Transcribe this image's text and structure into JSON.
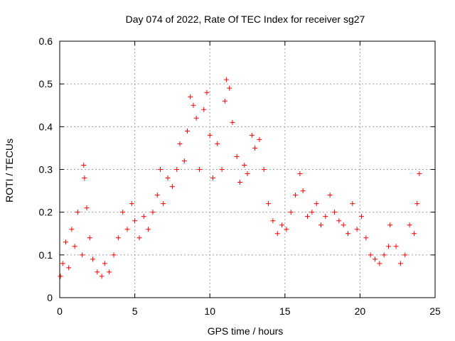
{
  "chart_data": {
    "type": "scatter",
    "title": "Day 074 of 2022, Rate Of TEC Index for receiver sg27",
    "xlabel": "GPS time / hours",
    "ylabel": "ROTI / TECUs",
    "xlim": [
      0,
      25
    ],
    "ylim": [
      0,
      0.6
    ],
    "xticks": [
      "0",
      "5",
      "10",
      "15",
      "20",
      "25"
    ],
    "yticks": [
      "0",
      "0.1",
      "0.2",
      "0.3",
      "0.4",
      "0.5",
      "0.6"
    ],
    "grid": true,
    "marker": "+",
    "color": "#ff0000",
    "series": [
      {
        "x": [
          0.05,
          0.2,
          0.4,
          0.6,
          0.8,
          1.0,
          1.2,
          1.5,
          1.6,
          1.65,
          1.8,
          2.0,
          2.2,
          2.5,
          2.8,
          3.0,
          3.3,
          3.6,
          3.9,
          4.2,
          4.5,
          4.8,
          5.0,
          5.3,
          5.6,
          5.9,
          6.2,
          6.5,
          6.7,
          6.9,
          7.2,
          7.5,
          7.8,
          8.0,
          8.3,
          8.5,
          8.7,
          8.9,
          9.1,
          9.3,
          9.6,
          9.8,
          10.0,
          10.2,
          10.5,
          10.8,
          11.0,
          11.1,
          11.3,
          11.5,
          11.8,
          12.0,
          12.3,
          12.5,
          12.8,
          13.0,
          13.3,
          13.6,
          13.9,
          14.2,
          14.5,
          14.8,
          15.1,
          15.4,
          15.7,
          16.0,
          16.2,
          16.5,
          16.8,
          17.1,
          17.4,
          17.7,
          18.0,
          18.3,
          18.6,
          18.9,
          19.2,
          19.5,
          19.8,
          20.1,
          20.4,
          20.7,
          21.0,
          21.3,
          21.6,
          21.9,
          22.0,
          22.4,
          22.7,
          23.0,
          23.3,
          23.6,
          23.8,
          23.95
        ],
        "y": [
          0.05,
          0.08,
          0.13,
          0.07,
          0.16,
          0.12,
          0.2,
          0.1,
          0.31,
          0.28,
          0.21,
          0.14,
          0.09,
          0.06,
          0.05,
          0.08,
          0.06,
          0.1,
          0.14,
          0.2,
          0.16,
          0.22,
          0.18,
          0.14,
          0.19,
          0.16,
          0.2,
          0.24,
          0.3,
          0.22,
          0.28,
          0.26,
          0.3,
          0.36,
          0.32,
          0.39,
          0.47,
          0.45,
          0.42,
          0.3,
          0.44,
          0.48,
          0.38,
          0.28,
          0.36,
          0.3,
          0.46,
          0.51,
          0.49,
          0.41,
          0.33,
          0.27,
          0.31,
          0.29,
          0.38,
          0.35,
          0.37,
          0.3,
          0.22,
          0.18,
          0.15,
          0.17,
          0.16,
          0.2,
          0.24,
          0.29,
          0.25,
          0.19,
          0.2,
          0.22,
          0.17,
          0.19,
          0.24,
          0.2,
          0.18,
          0.17,
          0.15,
          0.22,
          0.16,
          0.19,
          0.14,
          0.1,
          0.09,
          0.08,
          0.1,
          0.12,
          0.17,
          0.12,
          0.08,
          0.1,
          0.17,
          0.15,
          0.22,
          0.29
        ]
      }
    ]
  }
}
